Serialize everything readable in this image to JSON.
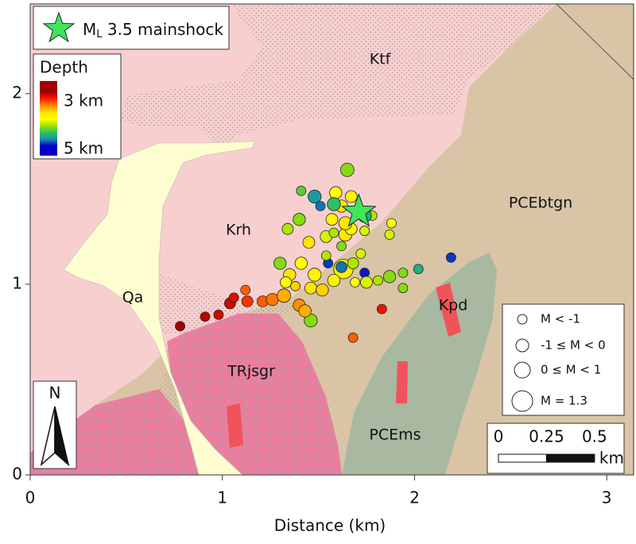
{
  "chart_data": {
    "type": "scatter",
    "xlabel": "Distance (km)",
    "xlim": [
      0,
      3.14
    ],
    "ylim": [
      0,
      2.47
    ],
    "xticks": [
      0,
      1,
      2,
      3
    ],
    "yticks": [
      0,
      1,
      2
    ],
    "points": {
      "x": [
        0.78,
        0.91,
        0.98,
        1.04,
        1.06,
        1.13,
        1.12,
        1.21,
        1.26,
        1.32,
        1.4,
        1.46,
        1.68,
        1.83,
        1.65,
        1.63,
        1.62,
        1.74,
        1.55,
        2.19,
        2.02,
        1.94,
        1.94,
        1.87,
        1.81,
        1.75,
        1.69,
        1.48,
        1.51,
        1.4,
        1.34,
        1.45,
        1.54,
        1.58,
        1.64,
        1.67,
        1.57,
        1.64,
        1.74,
        1.78,
        1.87,
        1.88,
        1.59,
        1.67,
        1.62,
        1.58,
        1.74,
        1.41,
        1.3,
        1.35,
        1.41,
        1.48,
        1.54,
        1.38,
        1.46,
        1.52,
        1.58,
        1.33,
        1.43,
        1.68,
        1.72,
        1.62
      ],
      "y": [
        0.78,
        0.83,
        0.84,
        0.9,
        0.93,
        0.91,
        0.97,
        0.91,
        0.92,
        0.94,
        0.89,
        0.81,
        0.72,
        0.87,
        1.6,
        1.08,
        1.09,
        1.06,
        1.11,
        1.14,
        1.08,
        1.06,
        0.98,
        1.04,
        1.02,
        1.01,
        1.01,
        1.46,
        1.41,
        1.34,
        1.29,
        1.22,
        1.25,
        1.27,
        1.26,
        1.29,
        1.34,
        1.32,
        1.28,
        1.36,
        1.26,
        1.32,
        1.48,
        1.46,
        1.41,
        1.42,
        1.36,
        1.49,
        1.11,
        1.05,
        1.11,
        1.05,
        1.15,
        0.99,
        0.98,
        0.97,
        1.02,
        1.01,
        0.86,
        1.11,
        1.16,
        1.2
      ],
      "depth": [
        3.0,
        3.05,
        3.1,
        3.1,
        3.15,
        3.3,
        3.4,
        3.4,
        3.45,
        3.6,
        3.5,
        4.3,
        3.4,
        3.2,
        4.3,
        3.9,
        4.8,
        4.95,
        4.9,
        4.9,
        4.6,
        4.3,
        4.3,
        4.3,
        4.2,
        4.1,
        4.0,
        4.7,
        4.8,
        4.3,
        4.2,
        3.8,
        4.1,
        4.2,
        3.8,
        3.9,
        3.9,
        3.8,
        4.1,
        4.2,
        4.1,
        4.0,
        4.0,
        3.9,
        3.8,
        4.5,
        4.6,
        4.4,
        4.3,
        3.8,
        4.0,
        3.9,
        4.2,
        3.7,
        3.8,
        3.7,
        3.9,
        4.0,
        3.6,
        4.2,
        4.1,
        4.3
      ],
      "magnitude": [
        -1.2,
        -1.2,
        -1.2,
        -0.8,
        -1.2,
        -0.8,
        -1.2,
        -0.8,
        -0.5,
        -0.2,
        -0.5,
        -0.3,
        -1.2,
        -1.2,
        -0.2,
        1.3,
        -0.8,
        -1.2,
        -1.2,
        -1.2,
        -1.2,
        -1.2,
        -1.2,
        -0.5,
        -1.2,
        -0.6,
        -1.2,
        -0.3,
        -1.2,
        -0.5,
        -0.8,
        -0.6,
        -0.6,
        -1.2,
        -0.3,
        -0.6,
        -0.6,
        -0.3,
        -1.2,
        -1.2,
        -1.2,
        -1.2,
        -0.5,
        -0.6,
        -0.5,
        -0.3,
        -0.2,
        -1.2,
        -0.5,
        -0.5,
        -0.5,
        -0.3,
        -1.2,
        -1.2,
        -0.6,
        -0.5,
        -0.5,
        -0.8,
        -0.5,
        -0.8,
        -1.2,
        -1.2
      ]
    },
    "mainshock": {
      "x": 1.71,
      "y": 1.38,
      "color": "#3ee65a",
      "label_main": "M",
      "label_sub": "L",
      "label_rest": " 3.5 mainshock"
    },
    "colorbar": {
      "title": "Depth",
      "lim": [
        3,
        5
      ],
      "ticks": [
        {
          "value": 3,
          "label": "3 km"
        },
        {
          "value": 5,
          "label": "5 km"
        }
      ],
      "colors": [
        "#a50000",
        "#ff1a00",
        "#ff8c00",
        "#ffe000",
        "#ffff00",
        "#9be000",
        "#2ec060",
        "#1590b0",
        "#0000c8"
      ]
    },
    "size_legend": [
      "M < -1",
      "-1 ≤ M < 0",
      "0 ≤ M < 1",
      "M = 1.3"
    ],
    "scale_bar": {
      "ticks": [
        0,
        0.25,
        0.5
      ],
      "unit": "km"
    },
    "north": "N",
    "units": [
      "Ktf",
      "Krh",
      "Qa",
      "PCEbtgn",
      "Kpd",
      "TRjsgr",
      "PCEms"
    ]
  }
}
